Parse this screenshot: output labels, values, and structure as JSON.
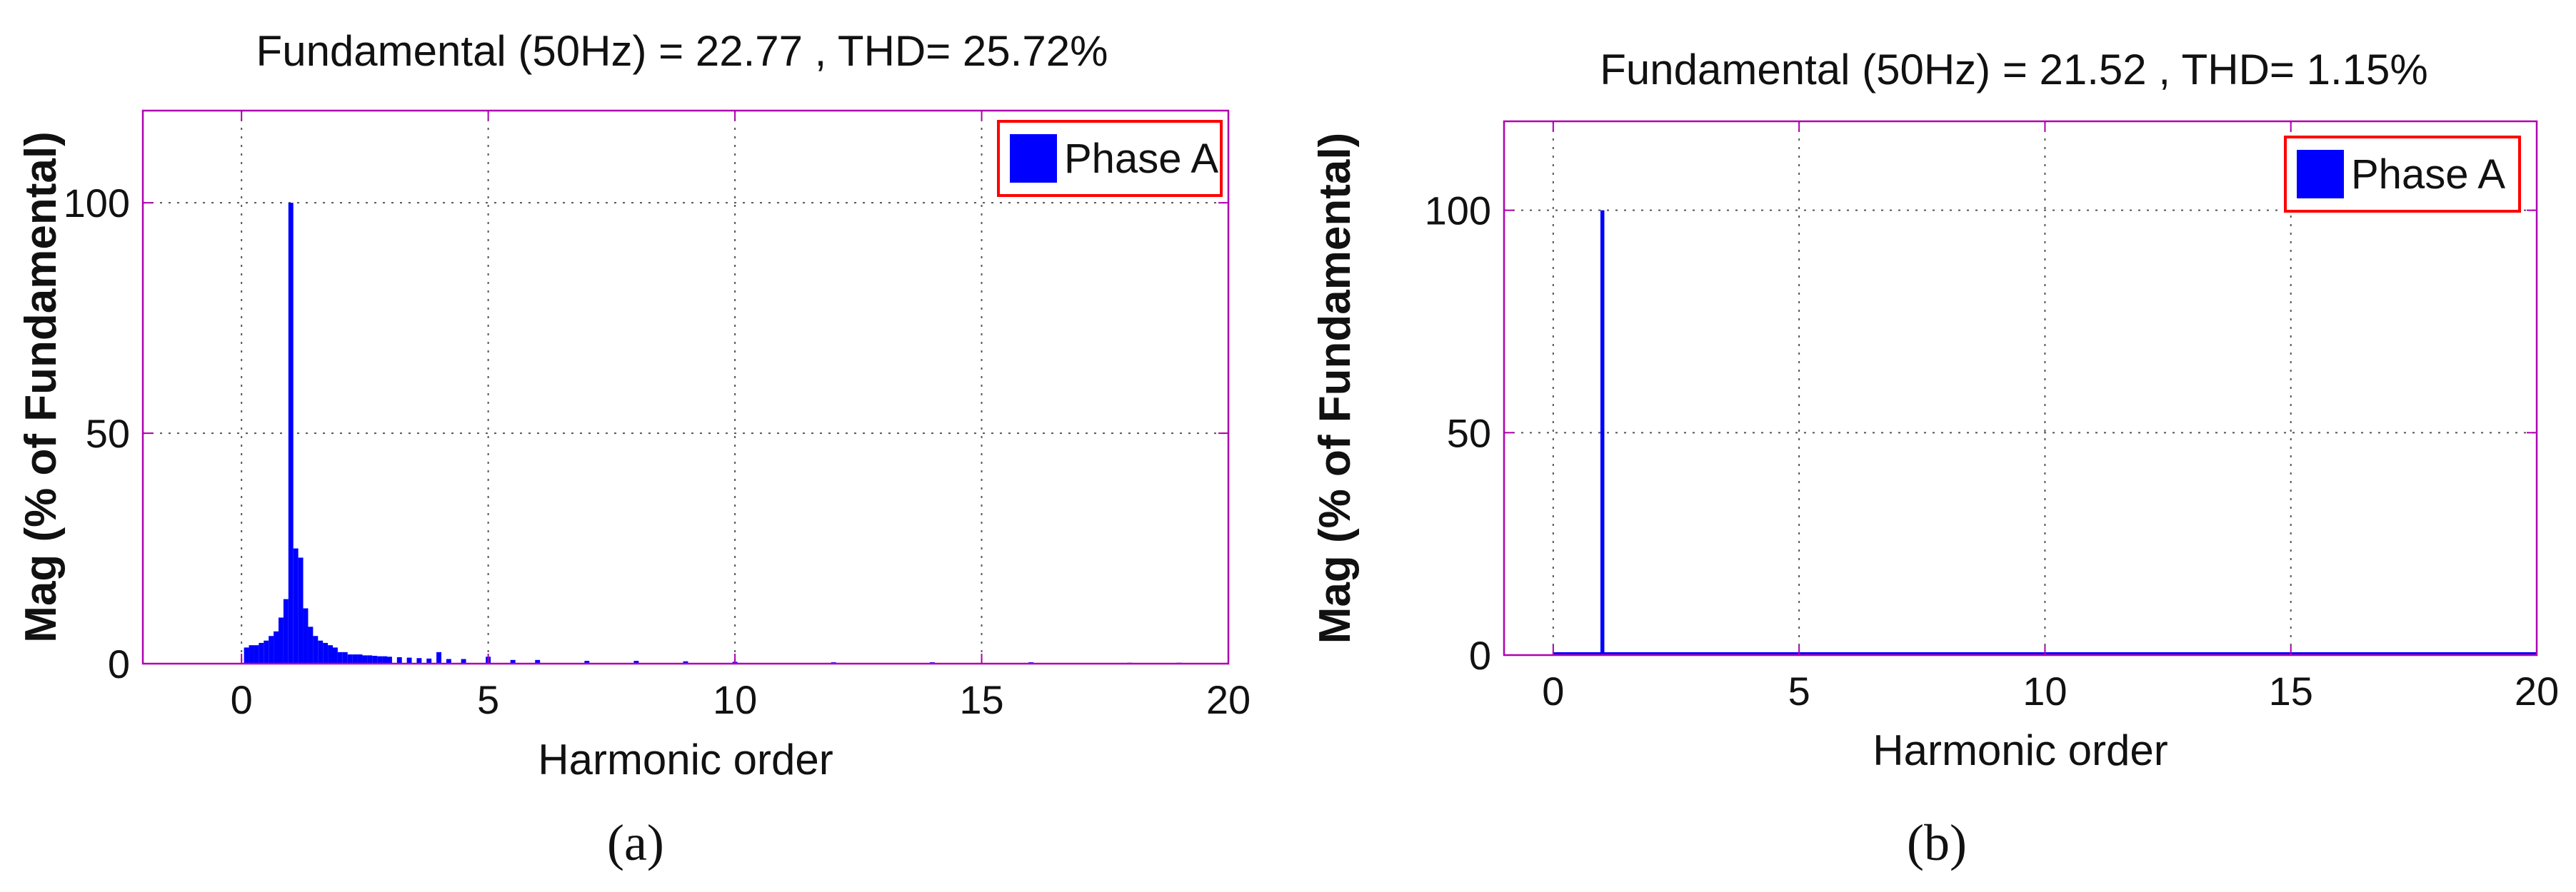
{
  "figure_labels": [
    "(a)",
    "(b)"
  ],
  "colors": {
    "bar": "#0000ff",
    "frame": "#b000b0",
    "legend_border": "#ff0000",
    "grid": "#555555",
    "text": "#111111"
  },
  "chart_data": [
    {
      "type": "bar",
      "title": "Fundamental (50Hz) = 22.77 , THD= 25.72%",
      "xlabel": "Harmonic order",
      "ylabel": "Mag (% of Fundamental)",
      "xlim": [
        -2,
        20
      ],
      "ylim": [
        0,
        120
      ],
      "xticks": [
        0,
        5,
        10,
        15,
        20
      ],
      "yticks": [
        0,
        50,
        100
      ],
      "grid": true,
      "legend": {
        "label": "Phase A",
        "placement": "top-right"
      },
      "bar_width": 0.1,
      "x": [
        0.1,
        0.2,
        0.3,
        0.4,
        0.5,
        0.6,
        0.7,
        0.8,
        0.9,
        1.0,
        1.1,
        1.2,
        1.3,
        1.4,
        1.5,
        1.6,
        1.7,
        1.8,
        1.9,
        2.0,
        2.1,
        2.2,
        2.3,
        2.4,
        2.5,
        2.6,
        2.7,
        2.8,
        2.9,
        3.0,
        3.2,
        3.4,
        3.6,
        3.8,
        4.0,
        4.2,
        4.5,
        5.0,
        5.5,
        6.0,
        7.0,
        8.0,
        9.0,
        10.0,
        12.0,
        14.0,
        16.0,
        18.0,
        19.0
      ],
      "values": [
        3.5,
        4,
        4,
        4.5,
        5,
        6,
        7,
        10,
        14,
        100,
        25,
        23,
        12,
        8,
        6,
        5,
        4.5,
        4,
        3.5,
        2.5,
        2.5,
        2,
        2,
        2,
        1.8,
        1.8,
        1.7,
        1.6,
        1.6,
        1.5,
        1.4,
        1.3,
        1.2,
        1.1,
        2.5,
        1.0,
        1.0,
        1.5,
        0.8,
        0.8,
        0.6,
        0.6,
        0.5,
        0.4,
        0.3,
        0.3,
        0.3,
        0.2,
        0.2
      ]
    },
    {
      "type": "bar",
      "title": "Fundamental (50Hz) = 21.52 , THD= 1.15%",
      "xlabel": "Harmonic order",
      "ylabel": "Mag (% of Fundamental)",
      "xlim": [
        -1,
        20
      ],
      "ylim": [
        0,
        120
      ],
      "xticks": [
        0,
        5,
        10,
        15,
        20
      ],
      "yticks": [
        0,
        50,
        100
      ],
      "grid": true,
      "legend": {
        "label": "Phase A",
        "placement": "top-right"
      },
      "bar_width": 0.08,
      "x": [
        1
      ],
      "values": [
        100
      ],
      "baseline_from": 0
    }
  ]
}
